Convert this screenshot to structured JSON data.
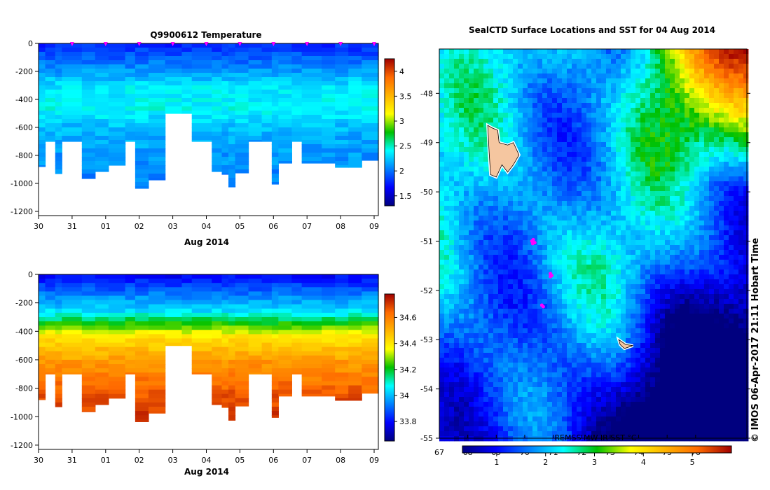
{
  "credit": "© IMOS 06-Apr-2017 21:11 Hobart Time",
  "chart_data": [
    {
      "type": "heatmap",
      "title": "Q9900612  Temperature",
      "xlabel": "Aug 2014",
      "x_tick_labels": [
        "30",
        "31",
        "01",
        "02",
        "03",
        "04",
        "05",
        "06",
        "07",
        "08",
        "09"
      ],
      "y_tick_labels": [
        "0",
        "-200",
        "-400",
        "-600",
        "-800",
        "-1000",
        "-1200"
      ],
      "ylim": [
        -1230,
        0
      ],
      "colorbar": {
        "ticks": [
          "1.5",
          "2",
          "2.5",
          "3",
          "3.5",
          "4"
        ],
        "range": [
          1.3,
          4.25
        ]
      },
      "profile_markers_x": [
        1.0,
        2.0,
        3.0,
        4.0,
        5.0,
        6.0,
        7.0,
        8.0,
        9.0,
        10.0
      ],
      "profile_bottom_depths": [
        880,
        700,
        930,
        700,
        965,
        915,
        870,
        700,
        1035,
        975,
        500,
        500,
        700,
        915,
        935,
        1025,
        925,
        700,
        700,
        1005,
        855,
        700,
        855,
        855,
        885,
        885,
        835
      ],
      "profile_times": [
        0.0,
        0.2,
        0.5,
        0.7,
        1.3,
        1.7,
        2.1,
        2.6,
        2.9,
        3.3,
        3.8,
        4.3,
        4.6,
        5.2,
        5.5,
        5.7,
        5.9,
        6.3,
        6.7,
        7.0,
        7.2,
        7.6,
        7.9,
        8.5,
        8.9,
        9.3,
        9.7
      ],
      "temperature_layers": [
        {
          "depth": 0,
          "value": 1.8
        },
        {
          "depth": 150,
          "value": 2.05
        },
        {
          "depth": 300,
          "value": 2.35
        },
        {
          "depth": 450,
          "value": 2.4
        },
        {
          "depth": 600,
          "value": 2.2
        },
        {
          "depth": 800,
          "value": 2.1
        },
        {
          "depth": 1000,
          "value": 2.05
        }
      ]
    },
    {
      "type": "heatmap",
      "title": "",
      "xlabel": "Aug 2014",
      "x_tick_labels": [
        "30",
        "31",
        "01",
        "02",
        "03",
        "04",
        "05",
        "06",
        "07",
        "08",
        "09"
      ],
      "y_tick_labels": [
        "0",
        "-200",
        "-400",
        "-600",
        "-800",
        "-1000",
        "-1200"
      ],
      "ylim": [
        -1230,
        0
      ],
      "colorbar": {
        "ticks": [
          "33.8",
          "34",
          "34.2",
          "34.4",
          "34.6"
        ],
        "range": [
          33.65,
          34.78
        ]
      },
      "profile_bottom_depths": [
        880,
        700,
        930,
        700,
        965,
        915,
        870,
        700,
        1035,
        975,
        500,
        500,
        700,
        915,
        935,
        1025,
        925,
        700,
        700,
        1005,
        855,
        700,
        855,
        855,
        885,
        885,
        835
      ],
      "profile_times": [
        0.0,
        0.2,
        0.5,
        0.7,
        1.3,
        1.7,
        2.1,
        2.6,
        2.9,
        3.3,
        3.8,
        4.3,
        4.6,
        5.2,
        5.5,
        5.7,
        5.9,
        6.3,
        6.7,
        7.0,
        7.2,
        7.6,
        7.9,
        8.5,
        8.9,
        9.3,
        9.7
      ],
      "salinity_layers": [
        {
          "depth": 0,
          "value": 33.8
        },
        {
          "depth": 150,
          "value": 33.95
        },
        {
          "depth": 250,
          "value": 34.05
        },
        {
          "depth": 320,
          "value": 34.2
        },
        {
          "depth": 420,
          "value": 34.4
        },
        {
          "depth": 600,
          "value": 34.55
        },
        {
          "depth": 800,
          "value": 34.65
        },
        {
          "depth": 1000,
          "value": 34.72
        }
      ]
    },
    {
      "type": "heatmap",
      "title": "SealCTD Surface Locations and SST for 04 Aug 2014",
      "x_tick_labels": [
        "67",
        "68",
        "69",
        "70",
        "71",
        "72",
        "73",
        "74",
        "75",
        "76"
      ],
      "y_tick_labels": [
        "-48",
        "-49",
        "-50",
        "-51",
        "-52",
        "-53",
        "-54",
        "-55"
      ],
      "xlim": [
        67,
        77.8
      ],
      "ylim": [
        -55,
        -47.1
      ],
      "source_label": "REMSS MW-IR SST °C",
      "colorbar": {
        "ticks": [
          "1",
          "2",
          "3",
          "4",
          "5"
        ],
        "range": [
          0.3,
          5.8
        ]
      },
      "seal_locations": [
        [
          70.3,
          -50.97
        ],
        [
          70.25,
          -51.0
        ],
        [
          70.35,
          -51.03
        ],
        [
          70.28,
          -51.05
        ],
        [
          70.9,
          -51.66
        ],
        [
          70.95,
          -51.7
        ],
        [
          70.9,
          -51.72
        ],
        [
          70.6,
          -52.3
        ],
        [
          70.65,
          -52.33
        ]
      ],
      "islands": [
        "Kerguelen",
        "Heard Island"
      ]
    }
  ]
}
